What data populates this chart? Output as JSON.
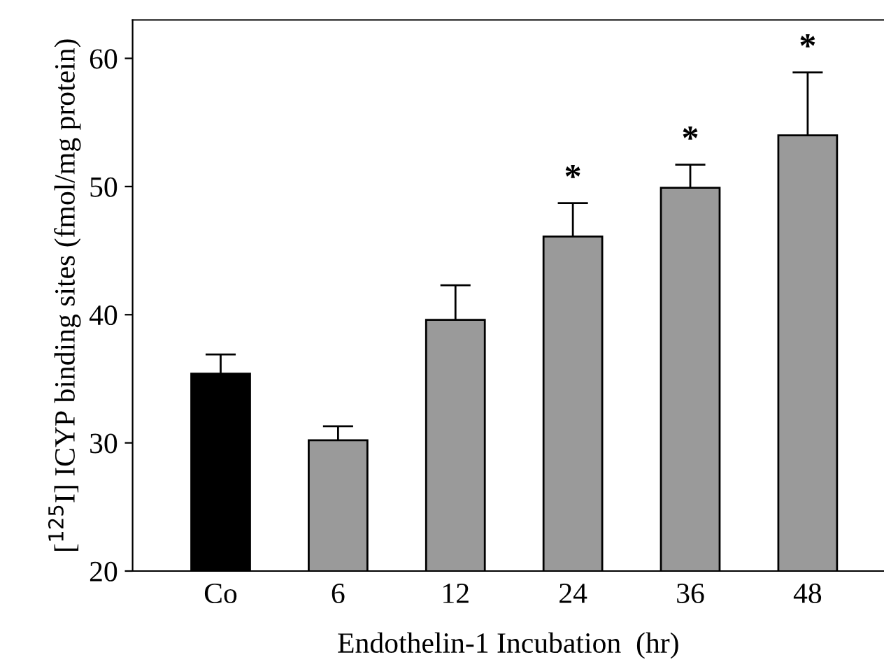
{
  "chart_data": {
    "type": "bar",
    "xlabel": "Endothelin-1 Incubation  (hr)",
    "ylabel": "[$^{125}$I] ICYP binding sites (fmol/mg protein)",
    "categories": [
      "Co",
      "6",
      "12",
      "24",
      "36",
      "48"
    ],
    "values": [
      35.4,
      30.2,
      39.6,
      46.1,
      49.9,
      54.0
    ],
    "errors": [
      [
        35.4,
        36.9
      ],
      [
        30.2,
        31.3
      ],
      [
        39.6,
        42.3
      ],
      [
        46.1,
        48.7
      ],
      [
        49.9,
        51.7
      ],
      [
        54.0,
        58.9
      ]
    ],
    "colors": [
      "#000000",
      "#9a9a9a",
      "#9a9a9a",
      "#9a9a9a",
      "#9a9a9a",
      "#9a9a9a"
    ],
    "ylim": [
      20,
      63
    ],
    "yticks": [
      20,
      30,
      40,
      50,
      60
    ],
    "grid": false,
    "legend": false,
    "annotations": [
      {
        "text": "*",
        "x": "24",
        "y": 48.7
      },
      {
        "text": "*",
        "x": "36",
        "y": 51.7
      },
      {
        "text": "*",
        "x": "48",
        "y": 58.9
      }
    ]
  }
}
